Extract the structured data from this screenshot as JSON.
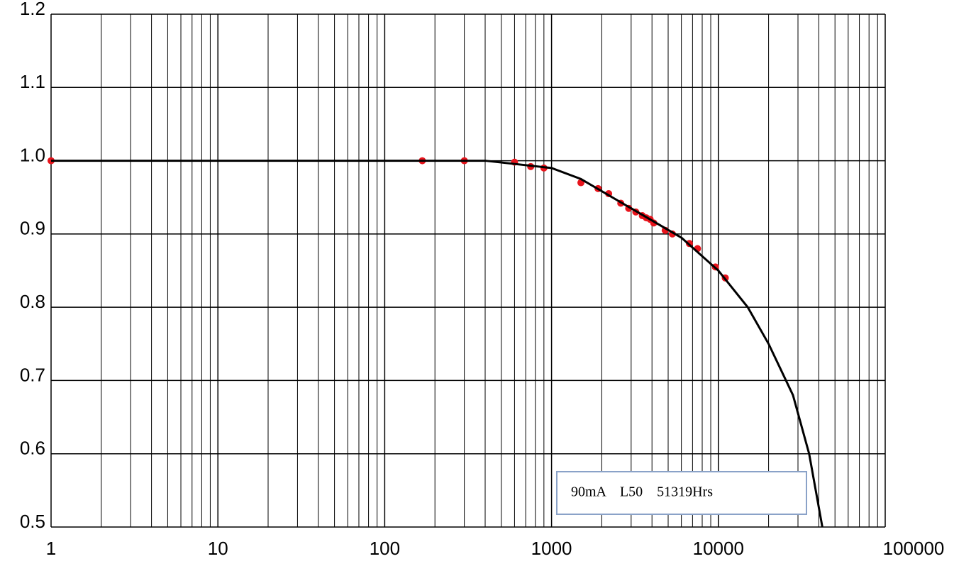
{
  "chart_data": {
    "type": "scatter",
    "xscale": "log",
    "grid": true,
    "xlim": [
      1,
      100000
    ],
    "ylim": [
      0.5,
      1.2
    ],
    "xticks": [
      1,
      10,
      100,
      1000,
      10000,
      100000
    ],
    "yticks": [
      0.5,
      0.6,
      0.7,
      0.8,
      0.9,
      {
        "value": 1,
        "label": "1.0"
      },
      1.1,
      1.2
    ],
    "series": [
      {
        "color": "#e8141c",
        "x": [
          1,
          168,
          300,
          600,
          750,
          900,
          1500,
          1900,
          2200,
          2600,
          2900,
          3200,
          3500,
          3700,
          3900,
          4100,
          4800,
          5300,
          6700,
          7500,
          9600,
          11000
        ],
        "values": [
          1.0,
          1.0,
          1.0,
          0.998,
          0.992,
          0.99,
          0.97,
          0.962,
          0.955,
          0.942,
          0.935,
          0.93,
          0.925,
          0.922,
          0.92,
          0.915,
          0.905,
          0.9,
          0.887,
          0.88,
          0.855,
          0.84
        ]
      },
      {
        "color": "#000000",
        "line": true,
        "x": [
          1,
          100,
          400,
          1000,
          1500,
          3000,
          6000,
          10000,
          15000,
          20000,
          28000,
          35000,
          42000
        ],
        "values": [
          1.0,
          1.0,
          1.0,
          0.99,
          0.975,
          0.935,
          0.895,
          0.85,
          0.8,
          0.75,
          0.68,
          0.6,
          0.5
        ]
      }
    ],
    "annotation": "90mA    L50    51319Hrs"
  }
}
